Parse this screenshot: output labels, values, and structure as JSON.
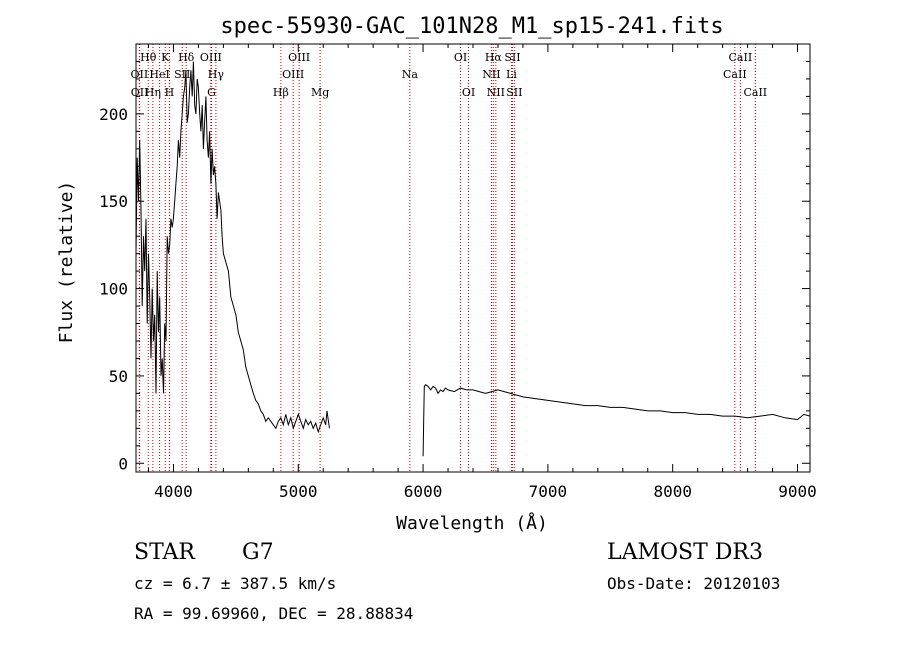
{
  "chart_data": {
    "type": "line",
    "title": "spec-55930-GAC_101N28_M1_sp15-241.fits",
    "xlabel": "Wavelength (Å)",
    "ylabel": "Flux (relative)",
    "xlim": [
      3700,
      9100
    ],
    "ylim": [
      -5,
      240
    ],
    "xticks": [
      4000,
      5000,
      6000,
      7000,
      8000,
      9000
    ],
    "yticks": [
      0,
      50,
      100,
      150,
      200
    ],
    "grid": false,
    "series": [
      {
        "name": "flux",
        "segments": [
          {
            "x": [
              3700,
              3710,
              3720,
              3730,
              3740,
              3750,
              3760,
              3770,
              3780,
              3790,
              3800,
              3810,
              3820,
              3830,
              3840,
              3850,
              3860,
              3870,
              3880,
              3890,
              3900,
              3910,
              3920,
              3930,
              3940,
              3950,
              3960,
              3970,
              3980,
              3990,
              4000,
              4010,
              4020,
              4030,
              4040,
              4050,
              4060,
              4070,
              4080,
              4090,
              4100,
              4110,
              4120,
              4130,
              4140,
              4150,
              4160,
              4170,
              4180,
              4190,
              4200,
              4210,
              4220,
              4230,
              4240,
              4250,
              4260,
              4270,
              4280,
              4290,
              4300,
              4310,
              4320,
              4330,
              4340,
              4350,
              4360,
              4370,
              4380,
              4390,
              4400,
              4420,
              4440,
              4460,
              4480,
              4500,
              4520,
              4540,
              4560,
              4580,
              4600,
              4620,
              4640,
              4660,
              4680,
              4700,
              4720,
              4740,
              4760,
              4780,
              4800,
              4820,
              4840,
              4860,
              4880,
              4900,
              4920,
              4940,
              4960,
              4980,
              5000,
              5020,
              5040,
              5060,
              5080,
              5100,
              5120,
              5140,
              5160,
              5180,
              5200,
              5220,
              5230,
              5240,
              5250
            ],
            "y": [
              120,
              175,
              150,
              185,
              145,
              90,
              130,
              110,
              140,
              80,
              120,
              95,
              60,
              100,
              70,
              85,
              40,
              110,
              75,
              95,
              50,
              60,
              40,
              80,
              70,
              130,
              120,
              125,
              140,
              135,
              140,
              150,
              160,
              170,
              185,
              175,
              190,
              200,
              210,
              215,
              225,
              195,
              200,
              215,
              225,
              210,
              230,
              205,
              200,
              220,
              215,
              200,
              190,
              205,
              180,
              195,
              210,
              185,
              175,
              190,
              160,
              180,
              165,
              170,
              160,
              140,
              155,
              150,
              145,
              130,
              120,
              115,
              110,
              95,
              90,
              85,
              75,
              70,
              65,
              55,
              50,
              45,
              40,
              36,
              34,
              30,
              28,
              24,
              26,
              24,
              22,
              20,
              24,
              26,
              22,
              28,
              22,
              26,
              20,
              24,
              28,
              24,
              20,
              25,
              22,
              24,
              20,
              23,
              18,
              22,
              26,
              22,
              30,
              25,
              20
            ]
          },
          {
            "x": [
              6000,
              6005,
              6010,
              6020,
              6040,
              6060,
              6080,
              6100,
              6120,
              6140,
              6160,
              6180,
              6200,
              6250,
              6300,
              6350,
              6400,
              6450,
              6500,
              6550,
              6600,
              6650,
              6700,
              6750,
              6800,
              6900,
              7000,
              7100,
              7200,
              7300,
              7400,
              7500,
              7600,
              7700,
              7800,
              7900,
              8000,
              8100,
              8200,
              8300,
              8400,
              8500,
              8600,
              8700,
              8800,
              8900,
              9000,
              9050,
              9100
            ],
            "y": [
              4,
              25,
              44,
              45,
              44,
              42,
              44,
              43,
              40,
              42,
              41,
              43,
              42,
              41,
              43,
              42,
              42,
              41,
              40,
              41,
              42,
              41,
              40,
              39,
              38,
              37,
              36,
              35,
              34,
              33,
              33,
              32,
              32,
              31,
              30,
              30,
              29,
              29,
              28,
              28,
              27,
              27,
              26,
              27,
              28,
              26,
              25,
              28,
              27
            ]
          }
        ]
      }
    ],
    "lines": [
      {
        "name": "OII",
        "wavelength": 3727,
        "row": 1
      },
      {
        "name": "OII",
        "wavelength": 3729,
        "row": 2
      },
      {
        "name": "Hθ",
        "wavelength": 3798,
        "row": 0
      },
      {
        "name": "Hη",
        "wavelength": 3835,
        "row": 2
      },
      {
        "name": "HeI",
        "wavelength": 3889,
        "row": 1
      },
      {
        "name": "K",
        "wavelength": 3934,
        "row": 0
      },
      {
        "name": "H",
        "wavelength": 3968,
        "row": 2
      },
      {
        "name": "SII",
        "wavelength": 4070,
        "row": 1
      },
      {
        "name": "Hδ",
        "wavelength": 4102,
        "row": 0
      },
      {
        "name": "OIII",
        "wavelength": 4300,
        "row": 0
      },
      {
        "name": "G",
        "wavelength": 4305,
        "row": 2
      },
      {
        "name": "Hγ",
        "wavelength": 4340,
        "row": 1
      },
      {
        "name": "Hβ",
        "wavelength": 4861,
        "row": 2
      },
      {
        "name": "OIII",
        "wavelength": 4959,
        "row": 1
      },
      {
        "name": "OIII",
        "wavelength": 5007,
        "row": 0
      },
      {
        "name": "Mg",
        "wavelength": 5175,
        "row": 2
      },
      {
        "name": "Na",
        "wavelength": 5894,
        "row": 1
      },
      {
        "name": "OI",
        "wavelength": 6300,
        "row": 0
      },
      {
        "name": "OI",
        "wavelength": 6364,
        "row": 2
      },
      {
        "name": "NII",
        "wavelength": 6548,
        "row": 1
      },
      {
        "name": "Hα",
        "wavelength": 6563,
        "row": 0
      },
      {
        "name": "NII",
        "wavelength": 6583,
        "row": 2
      },
      {
        "name": "SII",
        "wavelength": 6716,
        "row": 0
      },
      {
        "name": "Li",
        "wavelength": 6708,
        "row": 1
      },
      {
        "name": "SII",
        "wavelength": 6731,
        "row": 2
      },
      {
        "name": "CaII",
        "wavelength": 8498,
        "row": 1
      },
      {
        "name": "CaII",
        "wavelength": 8542,
        "row": 0
      },
      {
        "name": "CaII",
        "wavelength": 8662,
        "row": 2
      }
    ],
    "colors": {
      "spectrum": "#000000",
      "line_marker": "#cc0000",
      "axes": "#000000"
    }
  },
  "info": {
    "class": "STAR",
    "subclass": "G7",
    "survey": "LAMOST DR3",
    "cz": "cz = 6.7 ± 387.5 km/s",
    "obs_date": "Obs-Date: 20120103",
    "coords": "RA =  99.69960, DEC =  28.88834"
  }
}
